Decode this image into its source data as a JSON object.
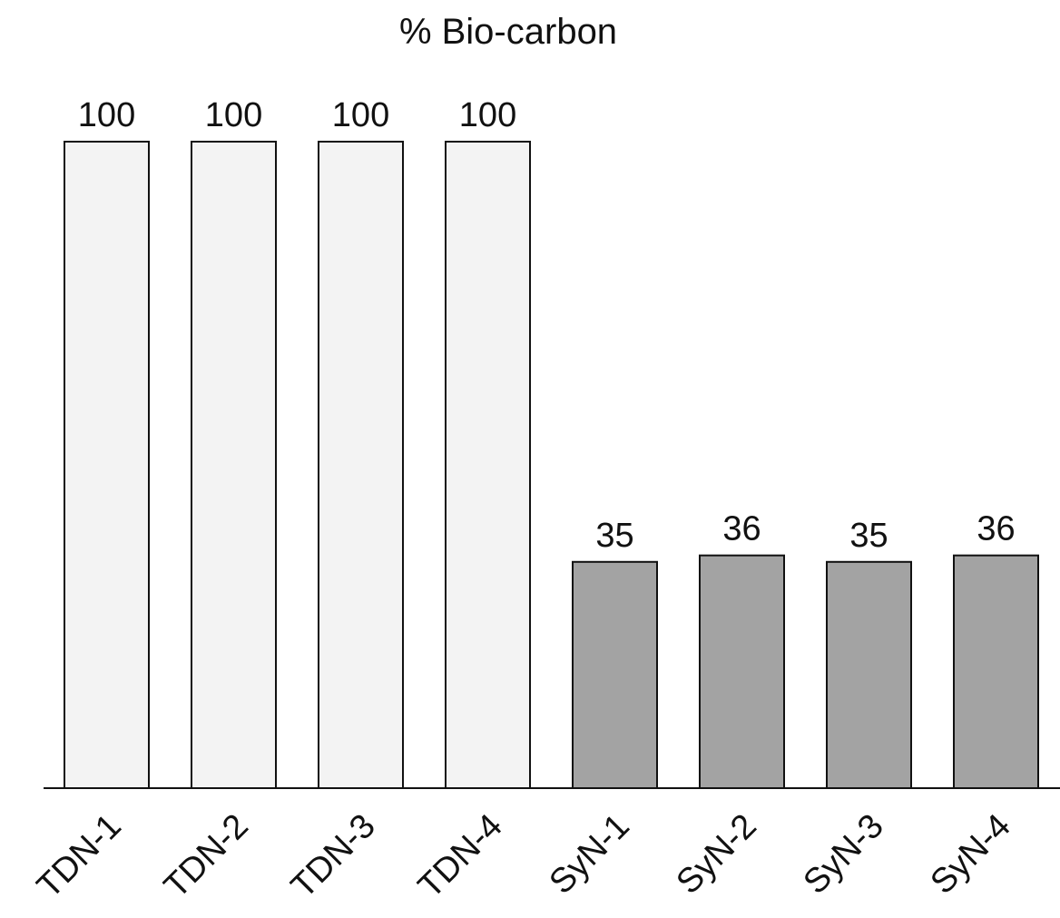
{
  "chart_data": {
    "type": "bar",
    "title": "% Bio-carbon",
    "categories": [
      "TDN-1",
      "TDN-2",
      "TDN-3",
      "TDN-4",
      "SyN-1",
      "SyN-2",
      "SyN-3",
      "SyN-4"
    ],
    "values": [
      100,
      100,
      100,
      100,
      35,
      36,
      35,
      36
    ],
    "value_labels": [
      "100",
      "100",
      "100",
      "100",
      "35",
      "36",
      "35",
      "36"
    ],
    "bar_colors": [
      "#f3f3f3",
      "#f3f3f3",
      "#f3f3f3",
      "#f3f3f3",
      "#a3a3a3",
      "#a3a3a3",
      "#a3a3a3",
      "#a3a3a3"
    ],
    "ylim": [
      0,
      100
    ],
    "grid": false,
    "legend": "none",
    "xlabel": "",
    "ylabel": ""
  }
}
